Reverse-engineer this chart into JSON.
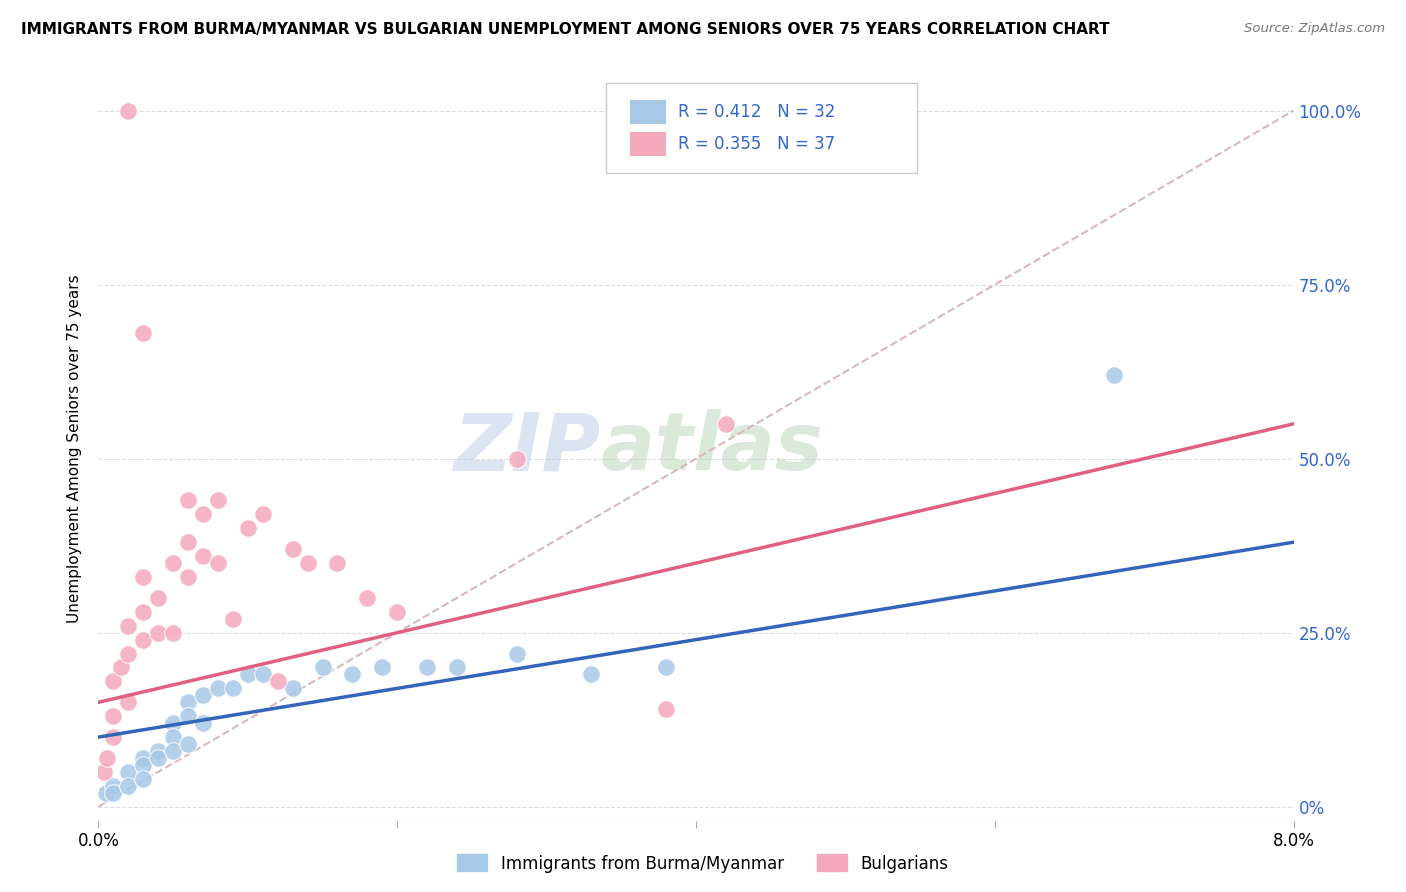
{
  "title": "IMMIGRANTS FROM BURMA/MYANMAR VS BULGARIAN UNEMPLOYMENT AMONG SENIORS OVER 75 YEARS CORRELATION CHART",
  "source": "Source: ZipAtlas.com",
  "ylabel": "Unemployment Among Seniors over 75 years",
  "watermark_zip": "ZIP",
  "watermark_atlas": "atlas",
  "xlim": [
    0.0,
    0.08
  ],
  "ylim": [
    -0.02,
    1.05
  ],
  "xticks": [
    0.0,
    0.02,
    0.04,
    0.06,
    0.08
  ],
  "xtick_labels": [
    "0.0%",
    "",
    "",
    "",
    "8.0%"
  ],
  "ytick_labels_right": [
    "0%",
    "25.0%",
    "50.0%",
    "75.0%",
    "100.0%"
  ],
  "yticks_right": [
    0.0,
    0.25,
    0.5,
    0.75,
    1.0
  ],
  "legend1_label": "Immigrants from Burma/Myanmar",
  "legend2_label": "Bulgarians",
  "R1": 0.412,
  "N1": 32,
  "R2": 0.355,
  "N2": 37,
  "color_blue": "#a8c8e8",
  "color_pink": "#f4a8bc",
  "color_blue_text": "#3366cc",
  "color_pink_line": "#e06080",
  "color_blue_line": "#3366bb",
  "color_dashed_line": "#d8b8c0",
  "blue_scatter_x": [
    0.0005,
    0.001,
    0.001,
    0.002,
    0.002,
    0.003,
    0.003,
    0.003,
    0.004,
    0.004,
    0.005,
    0.005,
    0.005,
    0.006,
    0.006,
    0.006,
    0.007,
    0.007,
    0.008,
    0.009,
    0.01,
    0.011,
    0.013,
    0.015,
    0.017,
    0.019,
    0.022,
    0.024,
    0.028,
    0.033,
    0.038,
    0.068
  ],
  "blue_scatter_y": [
    0.02,
    0.03,
    0.02,
    0.05,
    0.03,
    0.07,
    0.06,
    0.04,
    0.08,
    0.07,
    0.12,
    0.1,
    0.08,
    0.15,
    0.13,
    0.09,
    0.16,
    0.12,
    0.17,
    0.17,
    0.19,
    0.19,
    0.17,
    0.2,
    0.19,
    0.2,
    0.2,
    0.2,
    0.22,
    0.19,
    0.2,
    0.62
  ],
  "pink_scatter_x": [
    0.0004,
    0.0006,
    0.001,
    0.001,
    0.001,
    0.0015,
    0.002,
    0.002,
    0.002,
    0.003,
    0.003,
    0.003,
    0.004,
    0.004,
    0.005,
    0.005,
    0.006,
    0.006,
    0.006,
    0.007,
    0.007,
    0.008,
    0.008,
    0.009,
    0.01,
    0.011,
    0.012,
    0.013,
    0.014,
    0.016,
    0.018,
    0.02,
    0.028,
    0.038,
    0.003,
    0.042,
    0.002
  ],
  "pink_scatter_y": [
    0.05,
    0.07,
    0.1,
    0.13,
    0.18,
    0.2,
    0.15,
    0.22,
    0.26,
    0.24,
    0.28,
    0.33,
    0.25,
    0.3,
    0.35,
    0.25,
    0.38,
    0.33,
    0.44,
    0.36,
    0.42,
    0.44,
    0.35,
    0.27,
    0.4,
    0.42,
    0.18,
    0.37,
    0.35,
    0.35,
    0.3,
    0.28,
    0.5,
    0.14,
    0.68,
    0.55,
    1.0
  ],
  "blue_line_x": [
    0.0,
    0.08
  ],
  "blue_line_y": [
    0.1,
    0.38
  ],
  "pink_line_x": [
    0.0,
    0.08
  ],
  "pink_line_y": [
    0.15,
    0.55
  ],
  "dashed_line_x": [
    0.0,
    0.08
  ],
  "dashed_line_y": [
    0.0,
    1.0
  ]
}
